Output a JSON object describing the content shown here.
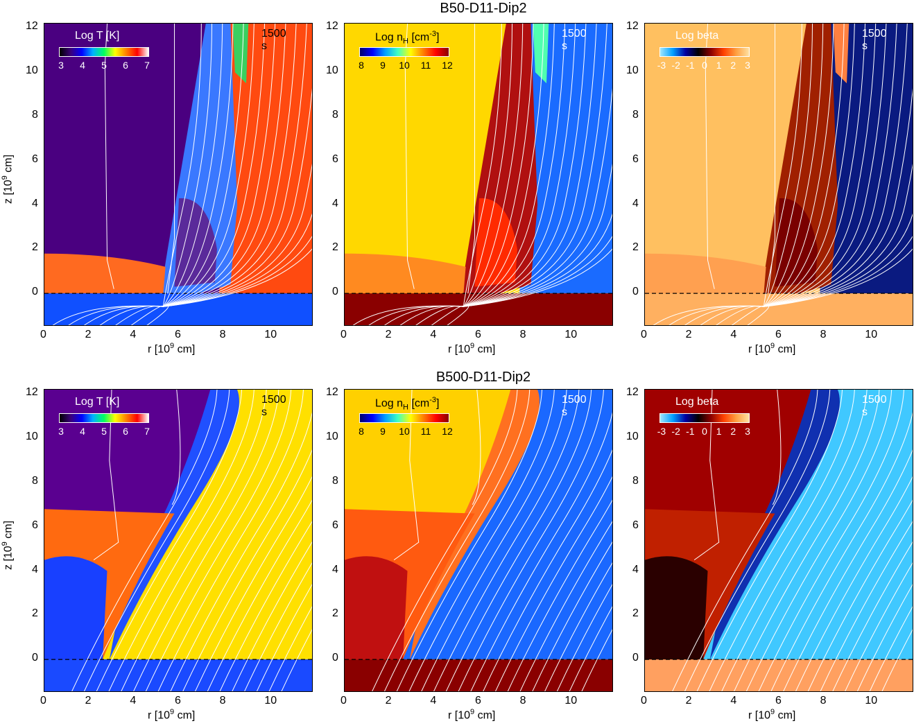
{
  "rows": [
    {
      "title": "B50-D11-Dip2",
      "panels": [
        {
          "colorbar_title": "Log T [K]",
          "colorbar_ticks": [
            "3",
            "4",
            "5",
            "6",
            "7"
          ],
          "time": "1500 s",
          "time_light": false,
          "cmap": "temp",
          "scene": "top-T"
        },
        {
          "colorbar_title": "Log n",
          "colorbar_sub": "H",
          "colorbar_unit": " [cm",
          "colorbar_sup": "-3",
          "colorbar_close": "]",
          "colorbar_ticks": [
            "8",
            "9",
            "10",
            "11",
            "12"
          ],
          "time": "1500 s",
          "time_light": true,
          "cmap": "dens",
          "scene": "top-n"
        },
        {
          "colorbar_title": "Log beta",
          "colorbar_ticks": [
            "-3",
            "-2",
            "-1",
            "0",
            "1",
            "2",
            "3"
          ],
          "time": "1500 s",
          "time_light": true,
          "cmap": "beta",
          "scene": "top-b"
        }
      ]
    },
    {
      "title": "B500-D11-Dip2",
      "panels": [
        {
          "colorbar_title": "Log T [K]",
          "colorbar_ticks": [
            "3",
            "4",
            "5",
            "6",
            "7"
          ],
          "time": "1500 s",
          "time_light": false,
          "cmap": "temp",
          "scene": "bot-T"
        },
        {
          "colorbar_title": "Log n",
          "colorbar_sub": "H",
          "colorbar_unit": " [cm",
          "colorbar_sup": "-3",
          "colorbar_close": "]",
          "colorbar_ticks": [
            "8",
            "9",
            "10",
            "11",
            "12"
          ],
          "time": "1500 s",
          "time_light": true,
          "cmap": "dens",
          "scene": "bot-n"
        },
        {
          "colorbar_title": "Log beta",
          "colorbar_ticks": [
            "-3",
            "-2",
            "-1",
            "0",
            "1",
            "2",
            "3"
          ],
          "time": "1500 s",
          "time_light": true,
          "cmap": "beta",
          "scene": "bot-b"
        }
      ]
    }
  ],
  "axes": {
    "xlabel": "r [10",
    "xlabel_sup": "9",
    "xlabel_tail": " cm]",
    "ylabel": "z [10",
    "ylabel_sup": "9",
    "ylabel_tail": " cm]",
    "xticks": [
      "0",
      "2",
      "4",
      "6",
      "8",
      "10"
    ],
    "yticks": [
      "0",
      "2",
      "4",
      "6",
      "8",
      "10",
      "12"
    ]
  },
  "chart_data": {
    "type": "heatmap",
    "panels": [
      "Log T [K]",
      "Log nH [cm-3]",
      "Log beta"
    ],
    "rows": [
      "B50-D11-Dip2",
      "B500-D11-Dip2"
    ],
    "time": "1500 s",
    "xlim": [
      0,
      12
    ],
    "ylim": [
      -1.5,
      12.2
    ],
    "x_ticks": [
      0,
      2,
      4,
      6,
      8,
      10
    ],
    "y_ticks": [
      0,
      2,
      4,
      6,
      8,
      10,
      12
    ],
    "colorbar_ranges": {
      "Log T [K]": [
        3,
        7
      ],
      "Log nH [cm-3]": [
        8,
        12
      ],
      "Log beta": [
        -3,
        3
      ]
    },
    "reference_line_z": 0
  },
  "colors": {
    "temp_stops": [
      "#000000",
      "#3b007a",
      "#0000ff",
      "#00b0ff",
      "#00ff60",
      "#ffff00",
      "#ff8000",
      "#ff0000",
      "#ffffff"
    ],
    "dens_stops": [
      "#00006a",
      "#0000ff",
      "#00a0ff",
      "#40ffc0",
      "#ffff00",
      "#ff8000",
      "#ff0000",
      "#8a0000"
    ],
    "beta_stops": [
      "#9fe6ff",
      "#00a0ff",
      "#0000a0",
      "#000000",
      "#8a0000",
      "#ff4000",
      "#ffa040",
      "#ffe0a0"
    ]
  }
}
